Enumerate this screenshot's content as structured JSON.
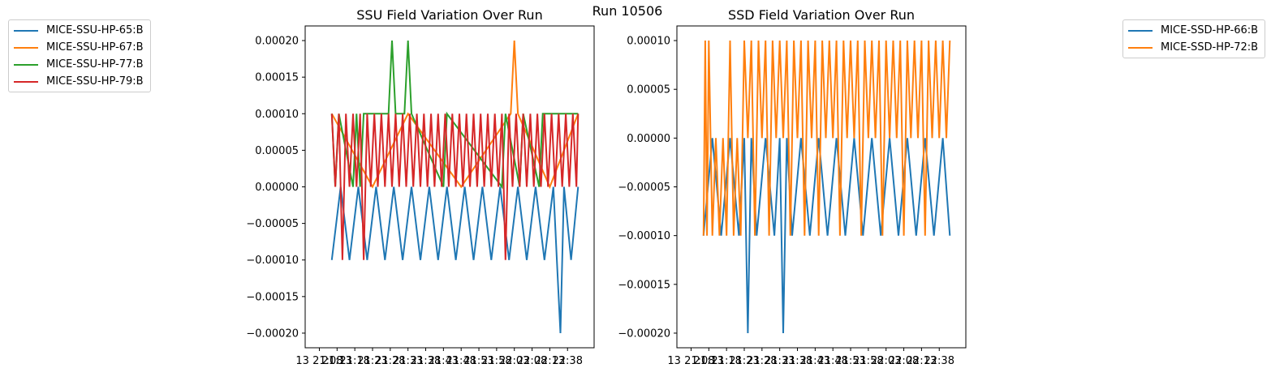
{
  "suptitle": "Run 10506",
  "chart_data": [
    {
      "type": "line",
      "title": "SSU Field Variation Over Run",
      "xlabel": "",
      "ylabel": "",
      "ylim": [
        -0.00022,
        0.00022
      ],
      "yticks": [
        -0.0002,
        -0.00015,
        -0.0001,
        -5e-05,
        0.0,
        5e-05,
        0.0001,
        0.00015,
        0.0002
      ],
      "ytick_labels": [
        "−0.00020",
        "−0.00015",
        "−0.00010",
        "−0.00005",
        "0.00000",
        "0.00005",
        "0.00010",
        "0.00015",
        "0.00020"
      ],
      "xlim": [
        -0.8,
        15.5
      ],
      "xticks": [
        0,
        1,
        2,
        3,
        4,
        5,
        6,
        7,
        8,
        9,
        10,
        11,
        12,
        13,
        14
      ],
      "xtick_labels": [
        "13 21:08",
        "21:13",
        "21:18",
        "21:23",
        "21:28",
        "21:33",
        "21:38",
        "21:43",
        "21:48",
        "21:53",
        "21:58",
        "22:03",
        "22:08",
        "22:13",
        "22:38"
      ],
      "grid": false,
      "legend_location": "outside-left",
      "series": [
        {
          "name": "MICE-SSU-HP-65:B",
          "color": "#1f77b4",
          "x": [
            0.7,
            1.2,
            1.7,
            2.2,
            2.7,
            3.2,
            3.7,
            4.2,
            4.7,
            5.2,
            5.7,
            6.2,
            6.7,
            7.2,
            7.7,
            8.2,
            8.7,
            9.2,
            9.7,
            10.2,
            10.7,
            11.2,
            11.7,
            12.2,
            12.7,
            13.2,
            13.4,
            13.6,
            13.8,
            14.2,
            14.6
          ],
          "y": [
            -0.0001,
            0.0,
            -0.0001,
            0.0,
            -0.0001,
            0.0,
            -0.0001,
            0.0,
            -0.0001,
            0.0,
            -0.0001,
            0.0,
            -0.0001,
            0.0,
            -0.0001,
            0.0,
            -0.0001,
            0.0,
            -0.0001,
            0.0,
            -0.0001,
            0.0,
            -0.0001,
            0.0,
            -0.0001,
            0.0,
            -0.0001,
            -0.0002,
            0.0,
            -0.0001,
            0.0
          ]
        },
        {
          "name": "MICE-SSU-HP-67:B",
          "color": "#ff7f0e",
          "x": [
            0.7,
            3.0,
            5.0,
            8.0,
            10.8,
            11.0,
            11.2,
            13.0,
            14.6
          ],
          "y": [
            0.0001,
            0.0,
            0.0001,
            0.0,
            0.0001,
            0.0002,
            0.0001,
            0.0,
            0.0001
          ]
        },
        {
          "name": "MICE-SSU-HP-77:B",
          "color": "#2ca02c",
          "x": [
            0.7,
            0.9,
            1.1,
            1.9,
            2.1,
            2.3,
            2.5,
            3.9,
            4.1,
            4.3,
            4.8,
            5.0,
            5.2,
            7.0,
            7.2,
            10.3,
            10.5,
            11.3,
            11.5,
            12.4,
            12.6,
            14.6
          ],
          "y": [
            0.0001,
            0.0,
            0.0001,
            0.0,
            0.0001,
            0.0,
            0.0001,
            0.0001,
            0.0002,
            0.0001,
            0.0001,
            0.0002,
            0.0001,
            0.0,
            0.0001,
            0.0,
            0.0001,
            0.0,
            0.0001,
            0.0,
            0.0001,
            0.0001
          ]
        },
        {
          "name": "MICE-SSU-HP-79:B",
          "color": "#d62728",
          "x": [
            0.7,
            0.9,
            1.1,
            1.3,
            1.5,
            1.7,
            1.9,
            2.1,
            2.3,
            2.5,
            2.7,
            2.9,
            3.1,
            3.3,
            3.5,
            3.7,
            3.9,
            4.1,
            4.3,
            4.5,
            4.7,
            4.9,
            5.1,
            5.3,
            5.5,
            5.7,
            5.9,
            6.1,
            6.3,
            6.5,
            6.7,
            6.9,
            7.1,
            7.3,
            7.5,
            7.7,
            7.9,
            8.1,
            8.3,
            8.5,
            8.7,
            8.9,
            9.1,
            9.3,
            9.5,
            9.7,
            9.9,
            10.1,
            10.3,
            10.5,
            10.7,
            10.9,
            11.1,
            11.3,
            11.5,
            11.7,
            11.9,
            12.1,
            12.3,
            12.5,
            12.7,
            12.9,
            13.1,
            13.3,
            13.5,
            13.7,
            13.9,
            14.1,
            14.3,
            14.5,
            14.6
          ],
          "y": [
            0.0001,
            0.0,
            0.0001,
            -0.0001,
            0.0001,
            0.0,
            0.0001,
            0.0,
            0.0001,
            -0.0001,
            0.0001,
            0.0,
            0.0001,
            0.0,
            0.0001,
            0.0,
            0.0001,
            0.0,
            0.0001,
            0.0,
            0.0001,
            0.0,
            0.0001,
            0.0,
            0.0001,
            0.0,
            0.0001,
            0.0,
            0.0001,
            0.0,
            0.0001,
            0.0,
            0.0001,
            0.0,
            0.0001,
            0.0,
            0.0001,
            0.0,
            0.0001,
            0.0,
            0.0001,
            0.0,
            0.0001,
            0.0,
            0.0001,
            0.0,
            0.0001,
            0.0,
            0.0001,
            -0.0001,
            0.0001,
            0.0,
            0.0001,
            0.0,
            0.0001,
            0.0,
            0.0001,
            0.0,
            0.0001,
            0.0,
            0.0001,
            0.0,
            0.0001,
            0.0,
            0.0001,
            0.0,
            0.0001,
            0.0,
            0.0001,
            0.0,
            0.0001
          ]
        }
      ]
    },
    {
      "type": "line",
      "title": "SSD Field Variation Over Run",
      "xlabel": "",
      "ylabel": "",
      "ylim": [
        -0.000215,
        0.000115
      ],
      "yticks": [
        -0.0002,
        -0.00015,
        -0.0001,
        -5e-05,
        0.0,
        5e-05,
        0.0001
      ],
      "ytick_labels": [
        "−0.00020",
        "−0.00015",
        "−0.00010",
        "−0.00005",
        "0.00000",
        "0.00005",
        "0.00010"
      ],
      "xlim": [
        -0.8,
        15.5
      ],
      "xticks": [
        0,
        1,
        2,
        3,
        4,
        5,
        6,
        7,
        8,
        9,
        10,
        11,
        12,
        13,
        14
      ],
      "xtick_labels": [
        "13 21:08",
        "21:13",
        "21:18",
        "21:23",
        "21:28",
        "21:33",
        "21:38",
        "21:43",
        "21:48",
        "21:53",
        "21:58",
        "22:03",
        "22:08",
        "22:13",
        "22:38"
      ],
      "grid": false,
      "legend_location": "outside-right",
      "series": [
        {
          "name": "MICE-SSD-HP-66:B",
          "color": "#1f77b4",
          "x": [
            0.7,
            1.2,
            1.7,
            2.2,
            2.7,
            3.0,
            3.2,
            3.4,
            3.7,
            4.2,
            4.7,
            5.0,
            5.2,
            5.4,
            5.7,
            6.2,
            6.7,
            7.2,
            7.7,
            8.2,
            8.7,
            9.2,
            9.7,
            10.2,
            10.7,
            11.2,
            11.7,
            12.2,
            12.7,
            13.2,
            13.7,
            14.2,
            14.6
          ],
          "y": [
            -0.0001,
            0.0,
            -0.0001,
            0.0,
            -0.0001,
            0.0,
            -0.0002,
            0.0,
            -0.0001,
            0.0,
            -0.0001,
            0.0,
            -0.0002,
            0.0,
            -0.0001,
            0.0,
            -0.0001,
            0.0,
            -0.0001,
            0.0,
            -0.0001,
            0.0,
            -0.0001,
            0.0,
            -0.0001,
            0.0,
            -0.0001,
            0.0,
            -0.0001,
            0.0,
            -0.0001,
            0.0,
            -0.0001
          ]
        },
        {
          "name": "MICE-SSD-HP-72:B",
          "color": "#ff7f0e",
          "x": [
            0.7,
            0.8,
            0.9,
            1.0,
            1.2,
            1.4,
            1.6,
            1.8,
            2.0,
            2.2,
            2.4,
            2.6,
            2.8,
            3.0,
            3.2,
            3.4,
            3.6,
            3.8,
            4.0,
            4.2,
            4.4,
            4.6,
            4.8,
            5.0,
            5.2,
            5.4,
            5.6,
            5.8,
            6.0,
            6.2,
            6.4,
            6.6,
            6.8,
            7.0,
            7.2,
            7.4,
            7.6,
            7.8,
            8.0,
            8.2,
            8.4,
            8.6,
            8.8,
            9.0,
            9.2,
            9.4,
            9.6,
            9.8,
            10.0,
            10.2,
            10.4,
            10.6,
            10.8,
            11.0,
            11.2,
            11.4,
            11.6,
            11.8,
            12.0,
            12.2,
            12.4,
            12.6,
            12.8,
            13.0,
            13.2,
            13.4,
            13.6,
            13.8,
            14.0,
            14.2,
            14.4,
            14.6
          ],
          "y": [
            -0.0001,
            0.0001,
            -0.0001,
            0.0001,
            -0.0001,
            0.0,
            -0.0001,
            0.0,
            -0.0001,
            0.0001,
            -0.0001,
            0.0,
            -0.0001,
            0.0001,
            0.0,
            0.0001,
            -0.0001,
            0.0001,
            0.0,
            0.0001,
            -0.0001,
            0.0001,
            0.0,
            0.0001,
            0.0,
            0.0001,
            -0.0001,
            0.0001,
            0.0,
            0.0001,
            -0.0001,
            0.0001,
            0.0,
            0.0001,
            -0.0001,
            0.0001,
            0.0,
            0.0001,
            0.0,
            0.0001,
            -0.0001,
            0.0001,
            0.0,
            0.0001,
            0.0,
            0.0001,
            -0.0001,
            0.0001,
            0.0,
            0.0001,
            0.0,
            0.0001,
            -0.0001,
            0.0001,
            0.0,
            0.0001,
            0.0,
            0.0001,
            -0.0001,
            0.0001,
            0.0,
            0.0001,
            0.0,
            0.0001,
            -0.0001,
            0.0001,
            0.0,
            0.0001,
            0.0,
            0.0001,
            0.0,
            0.0001
          ]
        }
      ]
    }
  ]
}
